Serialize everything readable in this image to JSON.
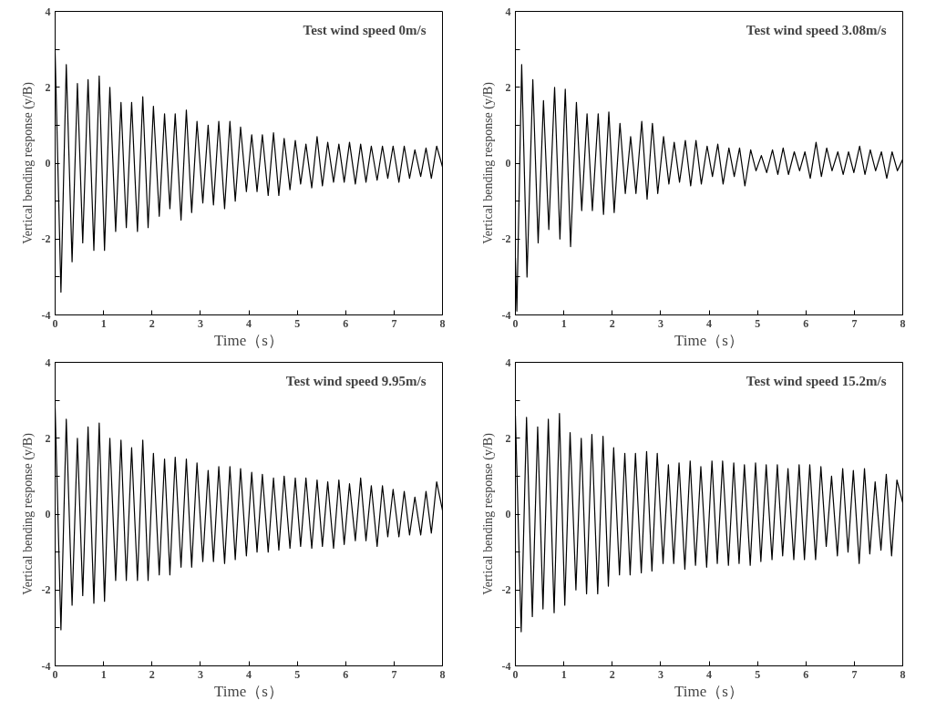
{
  "chart_data": [
    {
      "type": "line",
      "title": "Test wind speed 0m/s",
      "xlabel": "Time（s）",
      "ylabel": "Vertical bending response (y/B)",
      "xlim": [
        0,
        8
      ],
      "ylim": [
        -4,
        4
      ],
      "xticks": [
        0,
        1,
        2,
        3,
        4,
        5,
        6,
        7,
        8
      ],
      "yticks": [
        -4,
        {
          "value": -3,
          "label": null
        },
        -2,
        {
          "value": -1,
          "label": null
        },
        0,
        {
          "value": 1,
          "label": null
        },
        2,
        {
          "value": 3,
          "label": null
        },
        4
      ],
      "grid": false,
      "marker": "none",
      "line_style": "solid",
      "x": [
        0,
        0.12,
        0.23,
        0.35,
        0.46,
        0.57,
        0.68,
        0.8,
        0.91,
        1.02,
        1.13,
        1.25,
        1.36,
        1.47,
        1.58,
        1.7,
        1.81,
        1.92,
        2.03,
        2.15,
        2.26,
        2.37,
        2.48,
        2.6,
        2.71,
        2.82,
        2.93,
        3.05,
        3.16,
        3.27,
        3.38,
        3.5,
        3.61,
        3.72,
        3.83,
        3.95,
        4.06,
        4.17,
        4.28,
        4.4,
        4.51,
        4.62,
        4.73,
        4.85,
        4.96,
        5.07,
        5.18,
        5.3,
        5.41,
        5.52,
        5.63,
        5.75,
        5.86,
        5.97,
        6.08,
        6.2,
        6.31,
        6.42,
        6.53,
        6.65,
        6.76,
        6.87,
        6.98,
        7.1,
        7.21,
        7.32,
        7.43,
        7.55,
        7.66,
        7.77,
        7.88,
        8.0
      ],
      "series": [
        {
          "color": "#000000",
          "values": [
            2.9,
            -3.4,
            2.6,
            -2.6,
            2.1,
            -2.1,
            2.2,
            -2.3,
            2.3,
            -2.3,
            2.0,
            -1.8,
            1.6,
            -1.7,
            1.6,
            -1.8,
            1.75,
            -1.7,
            1.5,
            -1.4,
            1.3,
            -1.2,
            1.3,
            -1.5,
            1.4,
            -1.3,
            1.1,
            -1.05,
            1.0,
            -1.1,
            1.1,
            -1.2,
            1.1,
            -1.0,
            0.95,
            -0.75,
            0.75,
            -0.75,
            0.75,
            -0.85,
            0.8,
            -0.85,
            0.65,
            -0.7,
            0.6,
            -0.55,
            0.5,
            -0.65,
            0.7,
            -0.6,
            0.55,
            -0.5,
            0.5,
            -0.5,
            0.55,
            -0.55,
            0.5,
            -0.5,
            0.45,
            -0.45,
            0.45,
            -0.4,
            0.45,
            -0.5,
            0.45,
            -0.4,
            0.35,
            -0.35,
            0.4,
            -0.4,
            0.45,
            -0.1
          ]
        }
      ]
    },
    {
      "type": "line",
      "title": "Test wind speed 3.08m/s",
      "xlabel": "Time（s）",
      "ylabel": "Vertical bending response (y/B)",
      "xlim": [
        0,
        8
      ],
      "ylim": [
        -4,
        4
      ],
      "xticks": [
        0,
        1,
        2,
        3,
        4,
        5,
        6,
        7,
        8
      ],
      "yticks": [
        -4,
        {
          "value": -3,
          "label": null
        },
        -2,
        {
          "value": -1,
          "label": null
        },
        0,
        {
          "value": 1,
          "label": null
        },
        2,
        {
          "value": 3,
          "label": null
        },
        4
      ],
      "grid": false,
      "marker": "none",
      "line_style": "solid",
      "x": [
        0,
        0.03,
        0.13,
        0.24,
        0.36,
        0.47,
        0.58,
        0.69,
        0.81,
        0.92,
        1.03,
        1.14,
        1.26,
        1.37,
        1.48,
        1.59,
        1.71,
        1.82,
        1.93,
        2.04,
        2.16,
        2.27,
        2.38,
        2.49,
        2.61,
        2.72,
        2.83,
        2.94,
        3.06,
        3.17,
        3.28,
        3.39,
        3.51,
        3.62,
        3.73,
        3.84,
        3.96,
        4.07,
        4.18,
        4.29,
        4.41,
        4.52,
        4.63,
        4.74,
        4.86,
        4.97,
        5.08,
        5.19,
        5.31,
        5.42,
        5.53,
        5.64,
        5.76,
        5.87,
        5.98,
        6.09,
        6.21,
        6.32,
        6.43,
        6.54,
        6.66,
        6.77,
        6.88,
        6.99,
        7.11,
        7.22,
        7.33,
        7.44,
        7.56,
        7.67,
        7.78,
        7.89,
        8.0
      ],
      "series": [
        {
          "color": "#000000",
          "values": [
            -2.5,
            -3.9,
            2.6,
            -3.0,
            2.2,
            -2.1,
            1.65,
            -1.75,
            2.0,
            -2.0,
            1.95,
            -2.2,
            1.6,
            -1.25,
            1.3,
            -1.25,
            1.3,
            -1.35,
            1.35,
            -1.3,
            1.05,
            -0.8,
            0.7,
            -0.8,
            1.1,
            -0.95,
            1.05,
            -0.8,
            0.7,
            -0.55,
            0.55,
            -0.5,
            0.6,
            -0.6,
            0.6,
            -0.55,
            0.45,
            -0.35,
            0.5,
            -0.55,
            0.4,
            -0.35,
            0.4,
            -0.6,
            0.35,
            -0.2,
            0.2,
            -0.25,
            0.35,
            -0.3,
            0.4,
            -0.3,
            0.3,
            -0.2,
            0.3,
            -0.4,
            0.55,
            -0.35,
            0.4,
            -0.2,
            0.3,
            -0.3,
            0.3,
            -0.25,
            0.45,
            -0.3,
            0.35,
            -0.2,
            0.3,
            -0.4,
            0.3,
            -0.2,
            0.1
          ]
        }
      ]
    },
    {
      "type": "line",
      "title": "Test wind speed 9.95m/s",
      "xlabel": "Time（s）",
      "ylabel": "Vertical bending response (y/B)",
      "xlim": [
        0,
        8
      ],
      "ylim": [
        -4,
        4
      ],
      "xticks": [
        0,
        1,
        2,
        3,
        4,
        5,
        6,
        7,
        8
      ],
      "yticks": [
        -4,
        {
          "value": -3,
          "label": null
        },
        -2,
        {
          "value": -1,
          "label": null
        },
        0,
        {
          "value": 1,
          "label": null
        },
        2,
        {
          "value": 3,
          "label": null
        },
        4
      ],
      "grid": false,
      "marker": "none",
      "line_style": "solid",
      "x": [
        0,
        0.12,
        0.23,
        0.35,
        0.46,
        0.57,
        0.68,
        0.8,
        0.91,
        1.02,
        1.13,
        1.25,
        1.36,
        1.47,
        1.58,
        1.7,
        1.81,
        1.92,
        2.03,
        2.15,
        2.26,
        2.37,
        2.48,
        2.6,
        2.71,
        2.82,
        2.93,
        3.05,
        3.16,
        3.27,
        3.38,
        3.5,
        3.61,
        3.72,
        3.83,
        3.95,
        4.06,
        4.17,
        4.28,
        4.4,
        4.51,
        4.62,
        4.73,
        4.85,
        4.96,
        5.07,
        5.18,
        5.3,
        5.41,
        5.52,
        5.63,
        5.75,
        5.86,
        5.97,
        6.08,
        6.2,
        6.31,
        6.42,
        6.53,
        6.65,
        6.76,
        6.87,
        6.98,
        7.1,
        7.21,
        7.32,
        7.43,
        7.55,
        7.66,
        7.77,
        7.88,
        8.0
      ],
      "series": [
        {
          "color": "#000000",
          "values": [
            2.8,
            -3.05,
            2.5,
            -2.4,
            2.0,
            -2.15,
            2.3,
            -2.35,
            2.4,
            -2.3,
            2.0,
            -1.75,
            1.95,
            -1.75,
            1.75,
            -1.75,
            1.95,
            -1.75,
            1.6,
            -1.6,
            1.45,
            -1.6,
            1.5,
            -1.4,
            1.45,
            -1.4,
            1.35,
            -1.25,
            1.15,
            -1.25,
            1.25,
            -1.3,
            1.25,
            -1.2,
            1.2,
            -1.1,
            1.1,
            -1.0,
            1.05,
            -1.0,
            0.95,
            -0.95,
            1.0,
            -0.9,
            0.95,
            -0.85,
            0.95,
            -0.9,
            0.9,
            -0.85,
            0.85,
            -0.9,
            0.9,
            -0.8,
            0.8,
            -0.7,
            0.95,
            -0.7,
            0.75,
            -0.85,
            0.75,
            -0.6,
            0.65,
            -0.6,
            0.6,
            -0.55,
            0.45,
            -0.55,
            0.6,
            -0.5,
            0.85,
            0.1
          ]
        }
      ]
    },
    {
      "type": "line",
      "title": "Test wind speed 15.2m/s",
      "xlabel": "Time（s）",
      "ylabel": "Vertical bending response (y/B)",
      "xlim": [
        0,
        8
      ],
      "ylim": [
        -4,
        4
      ],
      "xticks": [
        0,
        1,
        2,
        3,
        4,
        5,
        6,
        7,
        8
      ],
      "yticks": [
        -4,
        {
          "value": -3,
          "label": null
        },
        -2,
        {
          "value": -1,
          "label": null
        },
        0,
        {
          "value": 1,
          "label": null
        },
        2,
        {
          "value": 3,
          "label": null
        },
        4
      ],
      "grid": false,
      "marker": "none",
      "line_style": "solid",
      "x": [
        0,
        0.12,
        0.23,
        0.35,
        0.46,
        0.57,
        0.68,
        0.8,
        0.91,
        1.02,
        1.13,
        1.25,
        1.36,
        1.47,
        1.58,
        1.7,
        1.81,
        1.92,
        2.03,
        2.15,
        2.26,
        2.37,
        2.48,
        2.6,
        2.71,
        2.82,
        2.93,
        3.05,
        3.16,
        3.27,
        3.38,
        3.5,
        3.61,
        3.72,
        3.83,
        3.95,
        4.06,
        4.17,
        4.28,
        4.4,
        4.51,
        4.62,
        4.73,
        4.85,
        4.96,
        5.07,
        5.18,
        5.3,
        5.41,
        5.52,
        5.63,
        5.75,
        5.86,
        5.97,
        6.08,
        6.2,
        6.31,
        6.42,
        6.53,
        6.65,
        6.76,
        6.87,
        6.98,
        7.1,
        7.21,
        7.32,
        7.43,
        7.55,
        7.66,
        7.77,
        7.88,
        8.0
      ],
      "series": [
        {
          "color": "#000000",
          "values": [
            2.6,
            -3.1,
            2.55,
            -2.7,
            2.3,
            -2.5,
            2.5,
            -2.6,
            2.65,
            -2.4,
            2.15,
            -2.0,
            2.0,
            -2.1,
            2.1,
            -2.1,
            2.05,
            -1.9,
            1.75,
            -1.6,
            1.6,
            -1.6,
            1.6,
            -1.55,
            1.65,
            -1.5,
            1.6,
            -1.3,
            1.3,
            -1.3,
            1.35,
            -1.45,
            1.4,
            -1.35,
            1.25,
            -1.4,
            1.4,
            -1.3,
            1.4,
            -1.35,
            1.35,
            -1.3,
            1.3,
            -1.35,
            1.35,
            -1.25,
            1.3,
            -1.2,
            1.3,
            -1.1,
            1.2,
            -1.2,
            1.3,
            -1.2,
            1.3,
            -1.2,
            1.25,
            -0.85,
            1.0,
            -1.1,
            1.2,
            -1.0,
            1.15,
            -1.3,
            1.2,
            -1.05,
            0.85,
            -0.95,
            1.05,
            -1.1,
            0.9,
            0.3
          ]
        }
      ]
    }
  ]
}
